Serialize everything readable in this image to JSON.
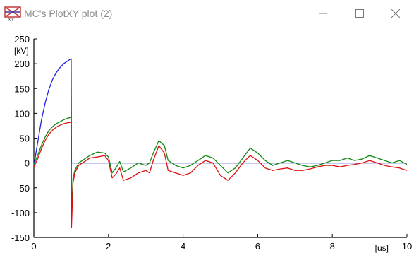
{
  "window": {
    "title": "MC's PlotXY plot (2)",
    "icon": "plotxy-app-icon",
    "controls": [
      "minimize-icon",
      "maximize-icon",
      "close-icon"
    ]
  },
  "chart_data": {
    "type": "line",
    "xlabel": "[us]",
    "ylabel": "[kV]",
    "xlim": [
      0,
      10
    ],
    "ylim": [
      -150,
      250
    ],
    "xticks": [
      0,
      2,
      4,
      6,
      8,
      10
    ],
    "yticks": [
      250,
      200,
      150,
      100,
      50,
      0,
      -50,
      -100,
      -150
    ],
    "x_tick_labels": [
      "0",
      "2",
      "4",
      "6",
      "8",
      "10"
    ],
    "y_tick_labels": [
      "250",
      "200",
      "150",
      "100",
      "50",
      "0",
      "-50",
      "-100",
      "-150"
    ],
    "grid": false,
    "legend": "none",
    "series": [
      {
        "color": "#2222dd",
        "x": [
          0,
          0.1,
          0.2,
          0.3,
          0.4,
          0.5,
          0.6,
          0.7,
          0.8,
          0.9,
          1.0,
          1.01,
          1.02,
          1.1,
          2.0,
          3.0,
          4.0,
          5.0,
          6.0,
          7.0,
          8.0,
          9.0,
          10.0
        ],
        "values": [
          -5,
          40,
          85,
          120,
          148,
          168,
          182,
          192,
          200,
          205,
          210,
          0,
          0,
          0,
          0,
          0,
          0,
          0,
          0,
          0,
          0,
          0,
          0
        ]
      },
      {
        "color": "#118811",
        "x": [
          0,
          0.1,
          0.2,
          0.3,
          0.4,
          0.5,
          0.6,
          0.7,
          0.8,
          0.9,
          1.0,
          1.01,
          1.05,
          1.1,
          1.2,
          1.3,
          1.5,
          1.7,
          1.9,
          2.0,
          2.1,
          2.2,
          2.3,
          2.4,
          2.6,
          2.8,
          3.0,
          3.1,
          3.2,
          3.35,
          3.5,
          3.6,
          3.8,
          4.0,
          4.2,
          4.4,
          4.6,
          4.8,
          5.0,
          5.2,
          5.4,
          5.6,
          5.8,
          6.0,
          6.2,
          6.4,
          6.6,
          6.8,
          7.0,
          7.2,
          7.4,
          7.6,
          7.8,
          8.0,
          8.2,
          8.4,
          8.6,
          8.8,
          9.0,
          9.2,
          9.4,
          9.6,
          9.8,
          10.0
        ],
        "values": [
          -3,
          15,
          35,
          52,
          65,
          73,
          79,
          83,
          87,
          90,
          92,
          -105,
          -30,
          -15,
          0,
          5,
          15,
          22,
          20,
          12,
          -20,
          -10,
          3,
          -18,
          -10,
          0,
          -5,
          0,
          20,
          45,
          35,
          5,
          -5,
          -10,
          -5,
          5,
          15,
          10,
          -5,
          -20,
          -10,
          10,
          30,
          20,
          5,
          -5,
          0,
          5,
          0,
          -5,
          -8,
          -5,
          0,
          5,
          5,
          10,
          5,
          8,
          15,
          10,
          5,
          0,
          5,
          -3
        ]
      },
      {
        "color": "#dd1111",
        "x": [
          0,
          0.1,
          0.2,
          0.3,
          0.4,
          0.5,
          0.6,
          0.7,
          0.8,
          0.9,
          1.0,
          1.01,
          1.05,
          1.1,
          1.2,
          1.3,
          1.5,
          1.7,
          1.9,
          2.0,
          2.1,
          2.2,
          2.3,
          2.4,
          2.6,
          2.8,
          3.0,
          3.1,
          3.2,
          3.35,
          3.5,
          3.6,
          3.8,
          4.0,
          4.2,
          4.4,
          4.6,
          4.8,
          5.0,
          5.2,
          5.4,
          5.6,
          5.8,
          6.0,
          6.2,
          6.4,
          6.6,
          6.8,
          7.0,
          7.2,
          7.4,
          7.6,
          7.8,
          8.0,
          8.2,
          8.4,
          8.6,
          8.8,
          9.0,
          9.2,
          9.4,
          9.6,
          9.8,
          10.0
        ],
        "values": [
          -8,
          8,
          28,
          45,
          58,
          66,
          72,
          76,
          79,
          81,
          82,
          -130,
          -40,
          -20,
          -5,
          0,
          10,
          12,
          15,
          5,
          -30,
          -22,
          -10,
          -35,
          -30,
          -20,
          -15,
          -20,
          5,
          35,
          20,
          -15,
          -20,
          -25,
          -20,
          -5,
          5,
          0,
          -25,
          -35,
          -20,
          0,
          15,
          5,
          -10,
          -15,
          -12,
          -10,
          -15,
          -15,
          -12,
          -8,
          -5,
          -5,
          -8,
          -5,
          -3,
          0,
          5,
          0,
          -5,
          -8,
          -10,
          -15
        ]
      }
    ]
  }
}
